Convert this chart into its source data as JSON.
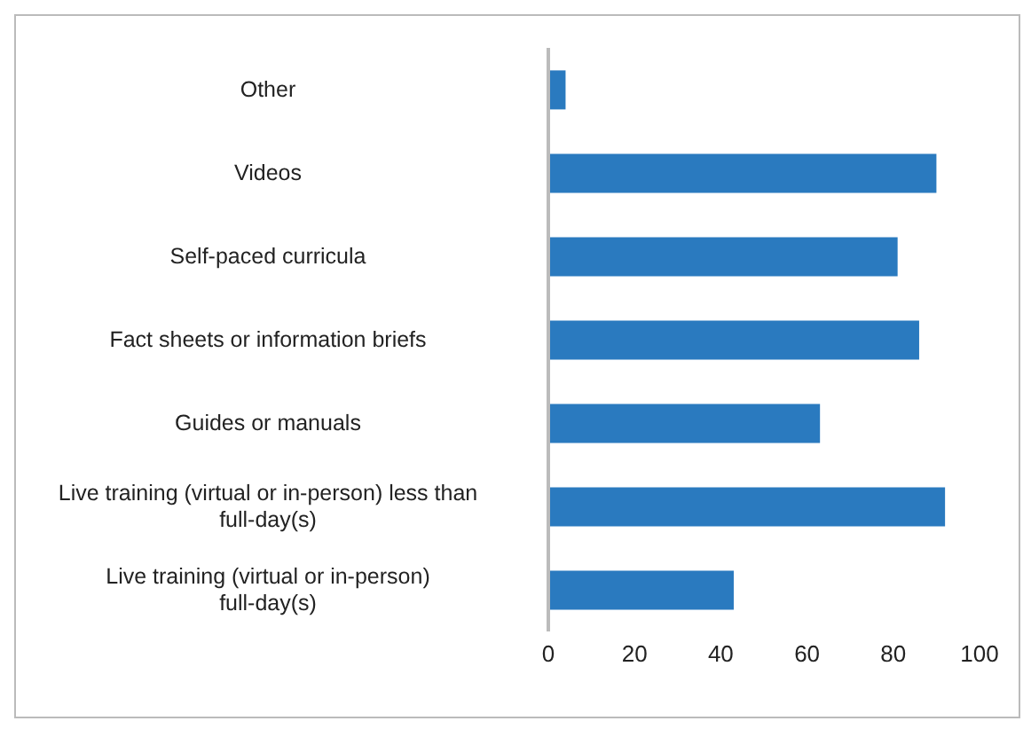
{
  "chart_data": {
    "type": "bar",
    "orientation": "horizontal",
    "categories": [
      "Other",
      "Videos",
      "Self-paced curricula",
      "Fact sheets or information briefs",
      "Guides or manuals",
      "Live training (virtual or in-person) less than full-day(s)",
      "Live training (virtual or in-person) full-day(s)"
    ],
    "values": [
      4,
      90,
      81,
      86,
      63,
      92,
      43
    ],
    "color": "#2a7abf",
    "xlim": [
      0,
      100
    ],
    "xticks": [
      0,
      20,
      40,
      60,
      80,
      100
    ],
    "grid": false,
    "legend": false
  }
}
